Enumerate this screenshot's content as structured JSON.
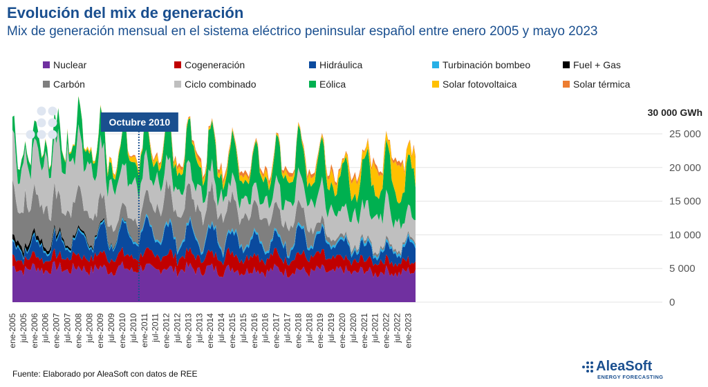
{
  "header": {
    "title": "Evolución del mix de generación",
    "subtitle": "Mix de generación mensual en el sistema eléctrico peninsular español entre enero 2005 y mayo 2023"
  },
  "footer": {
    "source": "Fuente: Elaborado por AleaSoft con datos de REE",
    "logo_name": "AleaSoft",
    "logo_tagline": "ENERGY FORECASTING"
  },
  "chart_data": {
    "type": "area",
    "stacked": true,
    "title": "Evolución del mix de generación",
    "subtitle": "Mix de generación mensual en el sistema eléctrico peninsular español entre enero 2005 y mayo 2023",
    "x_start": "ene-2005",
    "x_end": "may-2023",
    "x_tick_labels": [
      "ene-2005",
      "jul-2005",
      "ene-2006",
      "jul-2006",
      "ene-2007",
      "jul-2007",
      "ene-2008",
      "jul-2008",
      "ene-2009",
      "jul-2009",
      "ene-2010",
      "jul-2010",
      "ene-2011",
      "jul-2011",
      "ene-2012",
      "jul-2012",
      "ene-2013",
      "jul-2013",
      "ene-2014",
      "jul-2014",
      "ene-2015",
      "jul-2015",
      "ene-2016",
      "jul-2016",
      "ene-2017",
      "jul-2017",
      "ene-2018",
      "jul-2018",
      "ene-2019",
      "jul-2019",
      "ene-2020",
      "jul-2020",
      "ene-2021",
      "jul-2021",
      "ene-2022",
      "jul-2022",
      "ene-2023"
    ],
    "y_unit_label": "30 000 GWh",
    "y_tick_labels": [
      "0",
      "5 000",
      "10 000",
      "15 000",
      "20 000",
      "25 000"
    ],
    "ylim": [
      0,
      30000
    ],
    "annotation": {
      "label": "Octubre 2010",
      "x": "oct-2010"
    },
    "legend_position": "top",
    "series": [
      {
        "name": "Nuclear",
        "color": "#7030a0",
        "base": 4850,
        "amp": 450,
        "trend": [
          [
            2005,
            5000
          ],
          [
            2013,
            4900
          ],
          [
            2023,
            4400
          ]
        ]
      },
      {
        "name": "Cogeneración",
        "color": "#c00000",
        "base": 2000,
        "amp": 200,
        "trend": [
          [
            2005,
            1650
          ],
          [
            2012,
            2100
          ],
          [
            2019,
            2200
          ],
          [
            2020,
            1800
          ],
          [
            2023,
            1500
          ]
        ]
      },
      {
        "name": "Hidráulica",
        "color": "#0a4a9e",
        "base": 2600,
        "amp": 1100,
        "trend": [
          [
            2005,
            1400
          ],
          [
            2010,
            3100
          ],
          [
            2013,
            3000
          ],
          [
            2017,
            1900
          ],
          [
            2018,
            2700
          ],
          [
            2022,
            1500
          ],
          [
            2023,
            2100
          ]
        ]
      },
      {
        "name": "Turbinación bombeo",
        "color": "#27b0e6",
        "base": 300,
        "amp": 80,
        "trend": [
          [
            2005,
            250
          ],
          [
            2013,
            320
          ],
          [
            2023,
            350
          ]
        ]
      },
      {
        "name": "Fuel + Gas",
        "color": "#000000",
        "base": 200,
        "amp": 100,
        "trend": [
          [
            2005,
            800
          ],
          [
            2008,
            300
          ],
          [
            2010,
            100
          ],
          [
            2011,
            0
          ],
          [
            2023,
            0
          ]
        ]
      },
      {
        "name": "Carbón",
        "color": "#7f7f7f",
        "base": 4000,
        "amp": 800,
        "trend": [
          [
            2005,
            6300
          ],
          [
            2008,
            4800
          ],
          [
            2010,
            2000
          ],
          [
            2012,
            4800
          ],
          [
            2015,
            4500
          ],
          [
            2018,
            3200
          ],
          [
            2019,
            1200
          ],
          [
            2020,
            400
          ],
          [
            2023,
            350
          ]
        ]
      },
      {
        "name": "Ciclo combinado",
        "color": "#bfbfbf",
        "base": 5500,
        "amp": 1000,
        "trend": [
          [
            2005,
            6000
          ],
          [
            2008,
            7800
          ],
          [
            2010,
            5800
          ],
          [
            2012,
            3500
          ],
          [
            2016,
            2400
          ],
          [
            2019,
            4500
          ],
          [
            2020,
            3800
          ],
          [
            2022,
            5200
          ],
          [
            2023,
            3500
          ]
        ]
      },
      {
        "name": "Eólica",
        "color": "#00b050",
        "base": 3500,
        "amp": 1400,
        "trend": [
          [
            2005,
            1600
          ],
          [
            2010,
            3500
          ],
          [
            2013,
            4400
          ],
          [
            2018,
            4200
          ],
          [
            2021,
            5300
          ],
          [
            2023,
            5500
          ]
        ]
      },
      {
        "name": "Solar fotovoltaica",
        "color": "#ffc000",
        "base": 600,
        "amp": 400,
        "trend": [
          [
            2005,
            10
          ],
          [
            2008,
            150
          ],
          [
            2010,
            500
          ],
          [
            2018,
            600
          ],
          [
            2019,
            900
          ],
          [
            2021,
            1900
          ],
          [
            2022,
            2900
          ],
          [
            2023,
            3800
          ]
        ]
      },
      {
        "name": "Solar térmica",
        "color": "#ed7d31",
        "base": 250,
        "amp": 250,
        "trend": [
          [
            2005,
            0
          ],
          [
            2009,
            30
          ],
          [
            2011,
            160
          ],
          [
            2013,
            380
          ],
          [
            2023,
            380
          ]
        ]
      }
    ]
  }
}
